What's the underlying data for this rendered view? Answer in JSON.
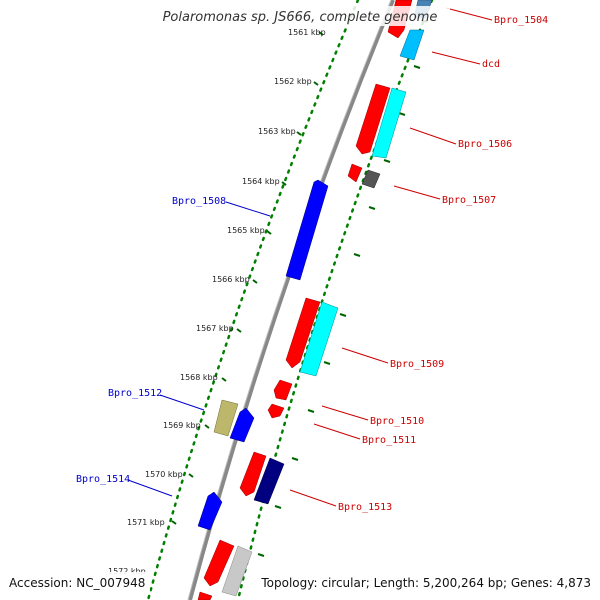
{
  "title": "Polaromonas sp. JS666, complete genome",
  "footer": {
    "accession": "Accession: NC_007948",
    "summary": "Topology: circular; Length: 5,200,264 bp; Genes: 4,873"
  },
  "ticks": [
    "1561 kbp",
    "1562 kbp",
    "1563 kbp",
    "1564 kbp",
    "1565 kbp",
    "1566 kbp",
    "1567 kbp",
    "1568 kbp",
    "1569 kbp",
    "1570 kbp",
    "1571 kbp",
    "1572 kbp"
  ],
  "colors": {
    "red": "#ff0000",
    "cyan": "#00ffff",
    "blue": "#0000ff",
    "navy": "#000080",
    "gray": "#555555",
    "khaki": "#bdb76b",
    "lightgray": "#c8c8c8",
    "steelblue": "#4682b4",
    "backbone": "#888888",
    "dots": "#008000",
    "label_red": "#cc0000",
    "label_blue": "#0000cc"
  },
  "labels": {
    "right": [
      {
        "id": "bpro_1504",
        "text": "Bpro_1504"
      },
      {
        "id": "dcd",
        "text": "dcd"
      },
      {
        "id": "bpro_1506",
        "text": "Bpro_1506"
      },
      {
        "id": "bpro_1507",
        "text": "Bpro_1507"
      },
      {
        "id": "bpro_1509",
        "text": "Bpro_1509"
      },
      {
        "id": "bpro_1510",
        "text": "Bpro_1510"
      },
      {
        "id": "bpro_1511",
        "text": "Bpro_1511"
      },
      {
        "id": "bpro_1513",
        "text": "Bpro_1513"
      }
    ],
    "left": [
      {
        "id": "bpro_1508",
        "text": "Bpro_1508"
      },
      {
        "id": "bpro_1512",
        "text": "Bpro_1512"
      },
      {
        "id": "bpro_1514",
        "text": "Bpro_1514"
      }
    ]
  }
}
